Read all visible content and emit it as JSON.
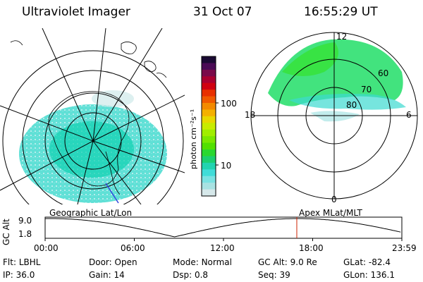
{
  "header": {
    "instrument": "Ultraviolet Imager",
    "date": "31 Oct 07",
    "time": "16:55:29 UT"
  },
  "left_panel": {
    "caption": "Geographic Lat/Lon"
  },
  "right_panel": {
    "caption": "Apex  MLat/MLT",
    "mlt_labels": {
      "top": "12",
      "left": "18",
      "right": "6",
      "bottom": "0"
    },
    "lat_labels": [
      "60",
      "70",
      "80"
    ]
  },
  "colorbar": {
    "unit_label": "photon cm⁻²s⁻¹",
    "ticks": [
      "100",
      "10"
    ],
    "colors": [
      "#1a0a33",
      "#4a0a55",
      "#7a0a4a",
      "#aa0030",
      "#d00010",
      "#e83000",
      "#f05a00",
      "#f38a00",
      "#f4b000",
      "#e8d800",
      "#c8ec00",
      "#a0ee00",
      "#7ae800",
      "#52e000",
      "#2ad830",
      "#1cd070",
      "#22d4b0",
      "#40dcd8",
      "#7ae2e2",
      "#a8e2e2",
      "#d6e8ea"
    ]
  },
  "timeline": {
    "axis_label": "GC Alt",
    "y_ticks": [
      "9.0",
      "1.8"
    ],
    "x_ticks": [
      "00:00",
      "06:00",
      "12:00",
      "18:00",
      "23:59"
    ],
    "marker_hour": 16.92,
    "marker_color": "#cc2200"
  },
  "info": {
    "row1": [
      {
        "label": "Flt:",
        "value": "LBHL"
      },
      {
        "label": "Door:",
        "value": "Open"
      },
      {
        "label": "Mode:",
        "value": "Normal"
      },
      {
        "label": "GC Alt:",
        "value": "9.0 Re"
      },
      {
        "label": "GLat:",
        "value": "-82.4"
      }
    ],
    "row2": [
      {
        "label": "IP:",
        "value": "36.0"
      },
      {
        "label": "Gain:",
        "value": "14"
      },
      {
        "label": "Dsp:",
        "value": "0.8"
      },
      {
        "label": "Seq:",
        "value": "39"
      },
      {
        "label": "GLon:",
        "value": "136.1"
      }
    ]
  }
}
